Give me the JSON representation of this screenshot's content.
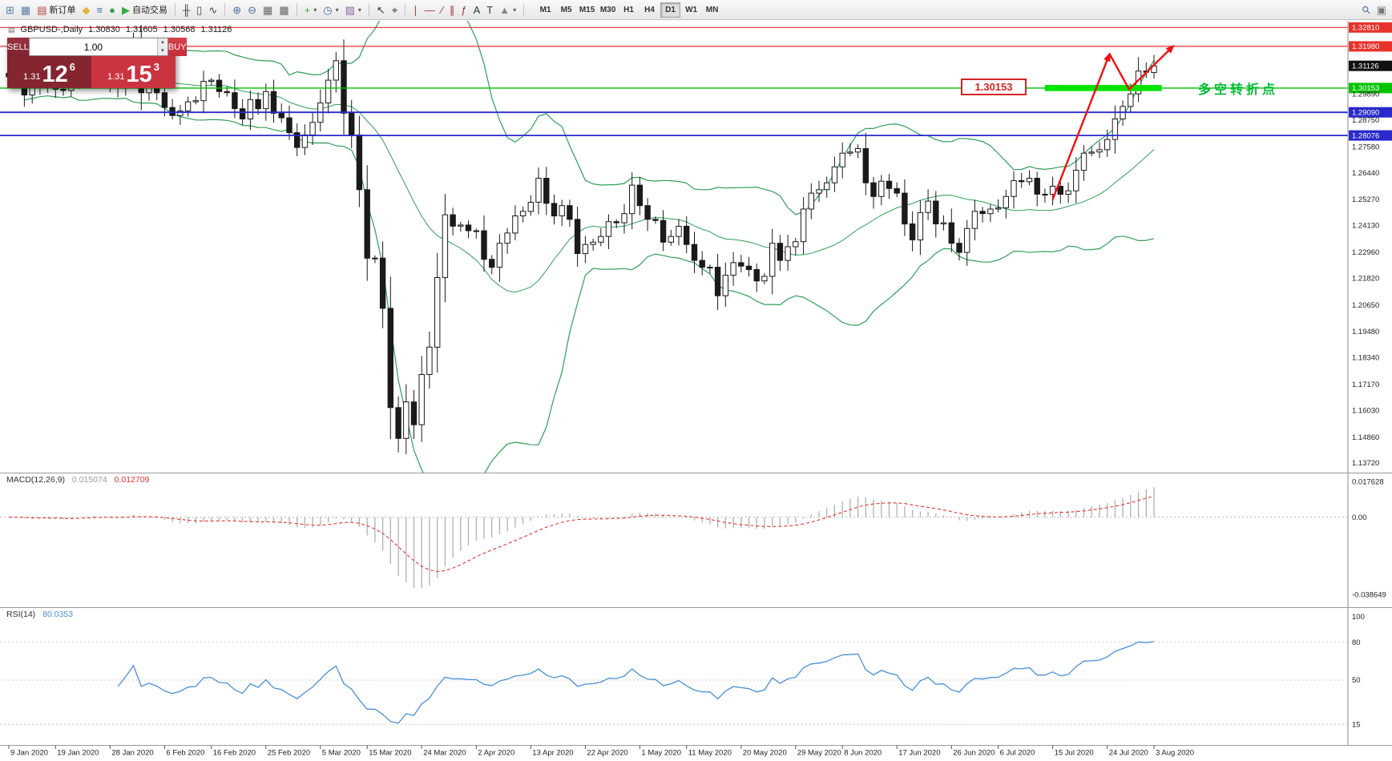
{
  "toolbar": {
    "dropdown_glyph": "▾",
    "items": [
      {
        "name": "new-chart-button",
        "glyph": "⊞",
        "color": "#5a7fae"
      },
      {
        "name": "profiles-button",
        "glyph": "▦",
        "color": "#5a7fae"
      },
      {
        "name": "new-order-button",
        "glyph": "▤",
        "color": "#b8473f",
        "label": "新订单"
      },
      {
        "name": "metaeditor-button",
        "glyph": "◆",
        "color": "#e2b23a"
      },
      {
        "name": "market-watch-button",
        "glyph": "≡",
        "color": "#4a6fa5"
      },
      {
        "name": "community-button",
        "glyph": "●",
        "color": "#3da14d"
      },
      {
        "name": "autotrading-button",
        "glyph": "▶",
        "color": "#2fae4a",
        "label": "自动交易"
      },
      {
        "type": "sep"
      },
      {
        "name": "bar-chart-button",
        "glyph": "╫",
        "color": "#444444"
      },
      {
        "name": "candle-chart-button",
        "glyph": "▯",
        "color": "#444444"
      },
      {
        "name": "line-chart-button",
        "glyph": "∿",
        "color": "#444444"
      },
      {
        "type": "sep"
      },
      {
        "name": "zoom-in-button",
        "glyph": "⊕",
        "color": "#4a6fa5"
      },
      {
        "name": "zoom-out-button",
        "glyph": "⊖",
        "color": "#4a6fa5"
      },
      {
        "name": "tile-windows-button",
        "glyph": "▦",
        "color": "#666666"
      },
      {
        "name": "cascade-windows-button",
        "glyph": "▩",
        "color": "#666666"
      },
      {
        "type": "sep"
      },
      {
        "name": "indicators-button",
        "glyph": "+",
        "color": "#2fae4a",
        "dropdown": true
      },
      {
        "name": "periods-button",
        "glyph": "◷",
        "color": "#4a6fa5",
        "dropdown": true
      },
      {
        "name": "templates-button",
        "glyph": "▨",
        "color": "#8a68a8",
        "dropdown": true
      },
      {
        "type": "sep"
      },
      {
        "name": "cursor-button",
        "glyph": "↖",
        "color": "#333333"
      },
      {
        "name": "crosshair-button",
        "glyph": "⌖",
        "color": "#333333"
      },
      {
        "type": "sep"
      },
      {
        "name": "vertical-line-button",
        "glyph": "∣",
        "color": "#a33333"
      },
      {
        "name": "horizontal-line-button",
        "glyph": "―",
        "color": "#a33333"
      },
      {
        "name": "trendline-button",
        "glyph": "∕",
        "color": "#a33333"
      },
      {
        "name": "channel-button",
        "glyph": "∥",
        "color": "#a33333"
      },
      {
        "name": "fibonacci-button",
        "glyph": "ƒ",
        "color": "#a33333"
      },
      {
        "name": "text-button",
        "glyph": "A",
        "color": "#333333"
      },
      {
        "name": "label-button",
        "glyph": "T",
        "color": "#333333"
      },
      {
        "name": "shapes-button",
        "glyph": "▲",
        "color": "#888888",
        "dropdown": true
      },
      {
        "type": "sep"
      },
      {
        "type": "tf"
      },
      {
        "type": "spacer"
      },
      {
        "name": "search-button",
        "glyph": "⚲",
        "color": "#4a6fa5"
      },
      {
        "name": "panel-button",
        "glyph": "▣",
        "color": "#777777"
      }
    ],
    "timeframes": [
      "M1",
      "M5",
      "M15",
      "M30",
      "H1",
      "H4",
      "D1",
      "W1",
      "MN"
    ],
    "active_timeframe": "D1"
  },
  "chart_header": {
    "icon": "▤",
    "symbol": "GBPUSD-,Daily",
    "open": "1.30830",
    "high": "1.31605",
    "low": "1.30568",
    "close": "1.31126"
  },
  "trade_panel": {
    "sell_label": "SELL",
    "buy_label": "BUY",
    "volume": "1.00",
    "spin_up_glyph": "▴",
    "spin_down_glyph": "▾",
    "sell_price_small": "1.31",
    "sell_price_big": "12",
    "sell_price_sup": "6",
    "buy_price_small": "1.31",
    "buy_price_big": "15",
    "buy_price_sup": "3"
  },
  "price_axis": {
    "labels": [
      {
        "text": "1.32810",
        "price": 1.3281,
        "type": "red"
      },
      {
        "text": "1.31980",
        "price": 1.3198,
        "type": "red"
      },
      {
        "text": "1.31126",
        "price": 1.31126,
        "type": "current"
      },
      {
        "text": "1.30153",
        "price": 1.30153,
        "type": "green"
      },
      {
        "text": "1.29890",
        "price": 1.2989,
        "type": "plain"
      },
      {
        "text": "1.29090",
        "price": 1.2909,
        "type": "blue"
      },
      {
        "text": "1.28750",
        "price": 1.2875,
        "type": "plain"
      },
      {
        "text": "1.28076",
        "price": 1.28076,
        "type": "blue"
      },
      {
        "text": "1.27580",
        "price": 1.2758,
        "type": "plain"
      },
      {
        "text": "1.26440",
        "price": 1.2644,
        "type": "plain"
      },
      {
        "text": "1.25270",
        "price": 1.2527,
        "type": "plain"
      },
      {
        "text": "1.24130",
        "price": 1.2413,
        "type": "plain"
      },
      {
        "text": "1.22960",
        "price": 1.2296,
        "type": "plain"
      },
      {
        "text": "1.21820",
        "price": 1.2182,
        "type": "plain"
      },
      {
        "text": "1.20650",
        "price": 1.2065,
        "type": "plain"
      },
      {
        "text": "1.19480",
        "price": 1.1948,
        "type": "plain"
      },
      {
        "text": "1.18340",
        "price": 1.1834,
        "type": "plain"
      },
      {
        "text": "1.17170",
        "price": 1.1717,
        "type": "plain"
      },
      {
        "text": "1.16030",
        "price": 1.1603,
        "type": "plain"
      },
      {
        "text": "1.14860",
        "price": 1.1486,
        "type": "plain"
      },
      {
        "text": "1.13720",
        "price": 1.1372,
        "type": "plain"
      }
    ]
  },
  "macd_panel": {
    "label": "MACD(12,26,9)",
    "value_main": "0.015074",
    "value_signal": "0.012709",
    "scale": [
      {
        "text": "0.017628",
        "value": 0.017628
      },
      {
        "text": "0.00",
        "value": 0
      },
      {
        "text": "-0.038649",
        "value": -0.038649
      }
    ]
  },
  "rsi_panel": {
    "label": "RSI(14)",
    "value": "80.0353",
    "scale": [
      {
        "text": "100",
        "value": 100
      },
      {
        "text": "80",
        "value": 80
      },
      {
        "text": "50",
        "value": 50
      },
      {
        "text": "15",
        "value": 15
      }
    ],
    "levels": [
      80,
      50,
      15
    ]
  },
  "date_axis": [
    "9 Jan 2020",
    "19 Jan 2020",
    "28 Jan 2020",
    "6 Feb 2020",
    "16 Feb 2020",
    "25 Feb 2020",
    "5 Mar 2020",
    "15 Mar 2020",
    "24 Mar 2020",
    "2 Apr 2020",
    "13 Apr 2020",
    "22 Apr 2020",
    "1 May 2020",
    "11 May 2020",
    "20 May 2020",
    "29 May 2020",
    "8 Jun 2020",
    "17 Jun 2020",
    "26 Jun 2020",
    "6 Jul 2020",
    "15 Jul 2020",
    "24 Jul 2020",
    "3 Aug 2020"
  ],
  "annotations": {
    "level_label": "1.30153",
    "note": "多空转折点",
    "highlight_segment": {
      "from_index": 133,
      "to_index": 148,
      "price": 1.30153
    },
    "trend_arrows": {
      "points": [
        [
          134,
          1.2527
        ],
        [
          141.3,
          1.3165
        ],
        [
          143.8,
          1.301
        ],
        [
          149.5,
          1.32
        ]
      ]
    }
  },
  "chart_data": {
    "type": "candlestick",
    "symbol": "GBPUSD",
    "timeframe": "Daily",
    "x_range": [
      "9 Jan 2020",
      "3 Aug 2020"
    ],
    "y_range": [
      1.133,
      1.331
    ],
    "closes": [
      1.3065,
      1.306,
      1.2985,
      1.3025,
      1.304,
      1.3075,
      1.301,
      1.3005,
      1.305,
      1.314,
      1.312,
      1.3075,
      1.3055,
      1.3025,
      1.3015,
      1.309,
      1.3205,
      1.2995,
      1.303,
      1.2995,
      1.293,
      1.2895,
      1.2915,
      1.2955,
      1.296,
      1.3045,
      1.305,
      1.3,
      1.2995,
      1.2925,
      1.288,
      1.2965,
      1.2925,
      1.3,
      1.2905,
      1.2885,
      1.282,
      1.2755,
      1.281,
      1.2865,
      1.295,
      1.305,
      1.3135,
      1.2905,
      1.281,
      1.257,
      1.227,
      1.227,
      1.205,
      1.1615,
      1.148,
      1.164,
      1.154,
      1.176,
      1.188,
      1.2185,
      1.246,
      1.241,
      1.2415,
      1.239,
      1.239,
      1.2265,
      1.223,
      1.2335,
      1.238,
      1.2455,
      1.2475,
      1.2515,
      1.262,
      1.251,
      1.2455,
      1.25,
      1.244,
      1.229,
      1.233,
      1.234,
      1.2365,
      1.243,
      1.2425,
      1.2465,
      1.259,
      1.25,
      1.244,
      1.2435,
      1.234,
      1.2365,
      1.241,
      1.233,
      1.226,
      1.223,
      1.223,
      1.2105,
      1.2195,
      1.225,
      1.2235,
      1.222,
      1.217,
      1.219,
      1.2335,
      1.226,
      1.232,
      1.2342,
      1.2485,
      1.2555,
      1.257,
      1.26,
      1.267,
      1.273,
      1.2735,
      1.275,
      1.26,
      1.254,
      1.2607,
      1.2575,
      1.2555,
      1.242,
      1.235,
      1.247,
      1.252,
      1.242,
      1.2425,
      1.2335,
      1.2295,
      1.24,
      1.2475,
      1.2465,
      1.2485,
      1.249,
      1.254,
      1.261,
      1.2605,
      1.262,
      1.255,
      1.255,
      1.2585,
      1.255,
      1.2565,
      1.2655,
      1.273,
      1.2735,
      1.2745,
      1.279,
      1.288,
      1.2935,
      1.299,
      1.309,
      1.3085,
      1.31126
    ],
    "last_candle": {
      "open": 1.3083,
      "high": 1.31605,
      "low": 1.30568,
      "close": 1.31126
    },
    "levels": [
      {
        "price": 1.3281,
        "color": "red"
      },
      {
        "price": 1.3198,
        "color": "red"
      },
      {
        "price": 1.30153,
        "color": "green"
      },
      {
        "price": 1.2909,
        "color": "blue"
      },
      {
        "price": 1.28076,
        "color": "blue"
      }
    ],
    "bollinger": {
      "period": 20,
      "deviation": 2
    },
    "macd": {
      "fast": 12,
      "slow": 26,
      "signal": 9
    },
    "rsi": {
      "period": 14
    },
    "date_label_indices": [
      0,
      6,
      13,
      20,
      26,
      33,
      40,
      46,
      53,
      60,
      67,
      74,
      81,
      87,
      94,
      101,
      107,
      114,
      121,
      127,
      134,
      141,
      147
    ]
  }
}
